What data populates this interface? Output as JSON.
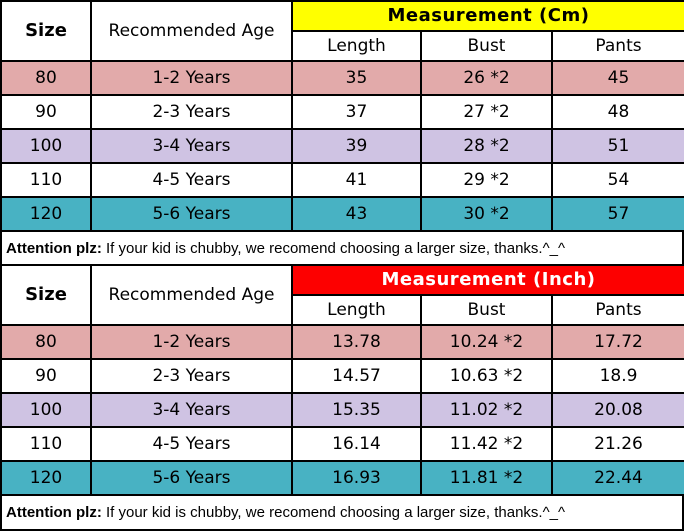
{
  "chart_data": [
    {
      "type": "table",
      "title": "Measurement (Cm)",
      "columns": [
        "Size",
        "Recommended Age",
        "Length",
        "Bust",
        "Pants"
      ],
      "group_header": {
        "label": "Measurement (Cm)",
        "bg": "#ffff00",
        "text_color": "#000000",
        "spans": [
          "Length",
          "Bust",
          "Pants"
        ]
      },
      "rows": [
        [
          "80",
          "1-2 Years",
          "35",
          "26 *2",
          "45"
        ],
        [
          "90",
          "2-3 Years",
          "37",
          "27 *2",
          "48"
        ],
        [
          "100",
          "3-4 Years",
          "39",
          "28 *2",
          "51"
        ],
        [
          "110",
          "4-5 Years",
          "41",
          "29 *2",
          "54"
        ],
        [
          "120",
          "5-6 Years",
          "43",
          "30 *2",
          "57"
        ]
      ],
      "row_colors": [
        "#e2aaaa",
        "#ffffff",
        "#cfc3e3",
        "#ffffff",
        "#48b2c3"
      ],
      "note": {
        "bold": "Attention plz:",
        "text": " If your kid is chubby, we recomend choosing a larger size, thanks.^_^"
      }
    },
    {
      "type": "table",
      "title": "Measurement (Inch)",
      "columns": [
        "Size",
        "Recommended Age",
        "Length",
        "Bust",
        "Pants"
      ],
      "group_header": {
        "label": "Measurement (Inch)",
        "bg": "#fd0000",
        "text_color": "#ffffff",
        "spans": [
          "Length",
          "Bust",
          "Pants"
        ]
      },
      "rows": [
        [
          "80",
          "1-2 Years",
          "13.78",
          "10.24 *2",
          "17.72"
        ],
        [
          "90",
          "2-3 Years",
          "14.57",
          "10.63 *2",
          "18.9"
        ],
        [
          "100",
          "3-4 Years",
          "15.35",
          "11.02 *2",
          "20.08"
        ],
        [
          "110",
          "4-5 Years",
          "16.14",
          "11.42 *2",
          "21.26"
        ],
        [
          "120",
          "5-6 Years",
          "16.93",
          "11.81 *2",
          "22.44"
        ]
      ],
      "row_colors": [
        "#e2aaaa",
        "#ffffff",
        "#cfc3e3",
        "#ffffff",
        "#48b2c3"
      ],
      "note": {
        "bold": "Attention plz:",
        "text": " If your kid is chubby, we recomend choosing a larger size, thanks.^_^"
      }
    }
  ],
  "layout_colors": {
    "border": "#000000",
    "pink_row": "#e2aaaa",
    "purple_row": "#cfc3e3",
    "teal_row": "#48b2c3",
    "cm_band": "#ffff00",
    "inch_band": "#fd0000"
  }
}
